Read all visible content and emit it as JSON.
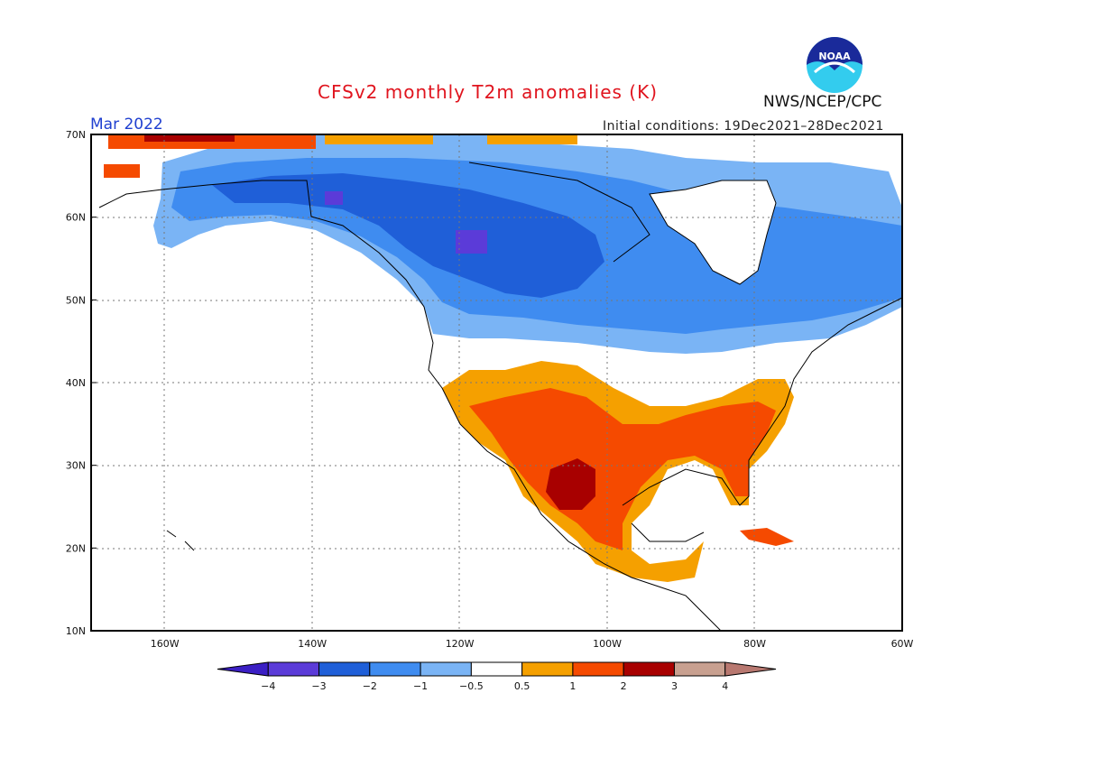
{
  "header": {
    "title": "CFSv2 monthly T2m anomalies (K)",
    "valid_month": "Mar 2022",
    "initial_conditions": "Initial conditions: 19Dec2021–28Dec2021",
    "agency": "NWS/NCEP/CPC",
    "logo_text": "NOAA"
  },
  "axes": {
    "lat_labels": [
      "70N",
      "60N",
      "50N",
      "40N",
      "30N",
      "20N",
      "10N"
    ],
    "lon_labels": [
      "160W",
      "140W",
      "120W",
      "100W",
      "80W",
      "60W"
    ],
    "lat_range": [
      10,
      70
    ],
    "lon_range": [
      -170,
      -60
    ]
  },
  "colorbar": {
    "labels": [
      "−4",
      "−3",
      "−2",
      "−1",
      "−0.5",
      "0.5",
      "1",
      "2",
      "3",
      "4"
    ],
    "colors": [
      "#3b1fc4",
      "#5b3bd8",
      "#1f5fd8",
      "#3f8cf0",
      "#7ab4f5",
      "#ffffff",
      "#f5a000",
      "#f54a00",
      "#a80000",
      "#c8a090",
      "#b87870"
    ]
  }
}
